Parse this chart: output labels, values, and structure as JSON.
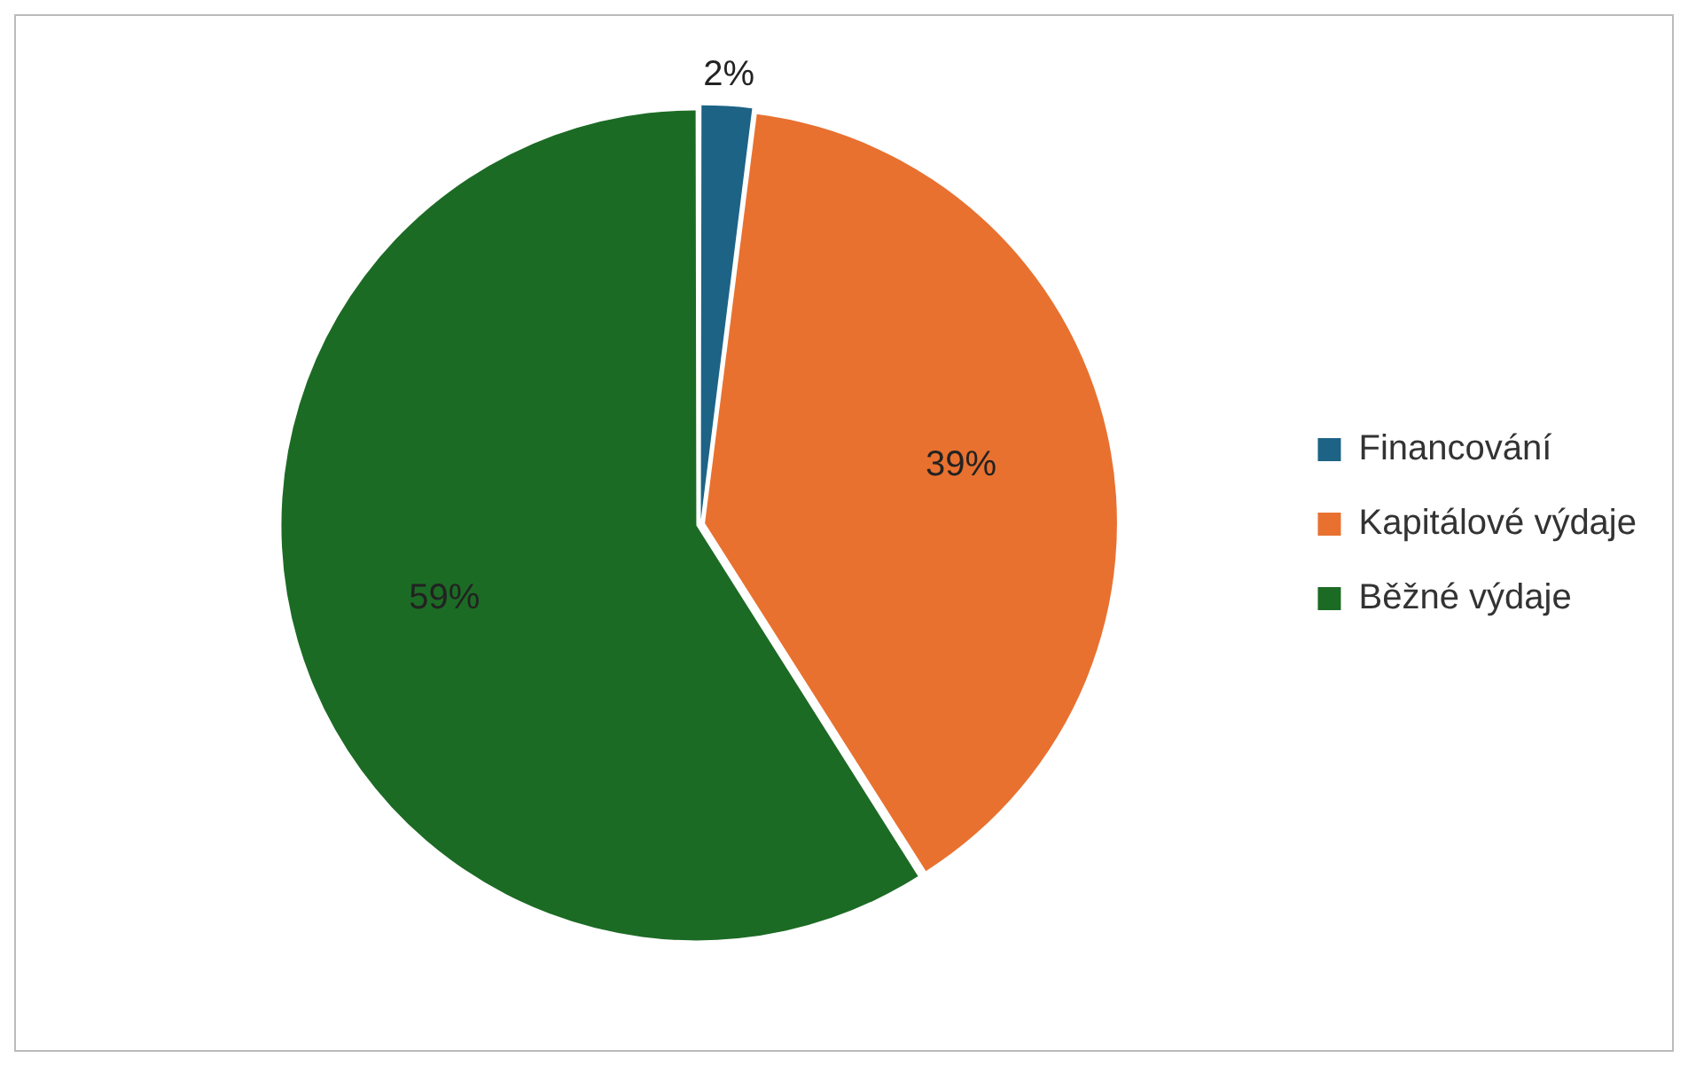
{
  "chart_data": {
    "type": "pie",
    "categories": [
      "Financování",
      "Kapitálové výdaje",
      "Běžné výdaje"
    ],
    "values": [
      2,
      39,
      59
    ],
    "colors": [
      "#1d6386",
      "#e87130",
      "#1c6b25"
    ],
    "value_labels": [
      "2%",
      "39%",
      "59%"
    ],
    "legend": "right"
  }
}
